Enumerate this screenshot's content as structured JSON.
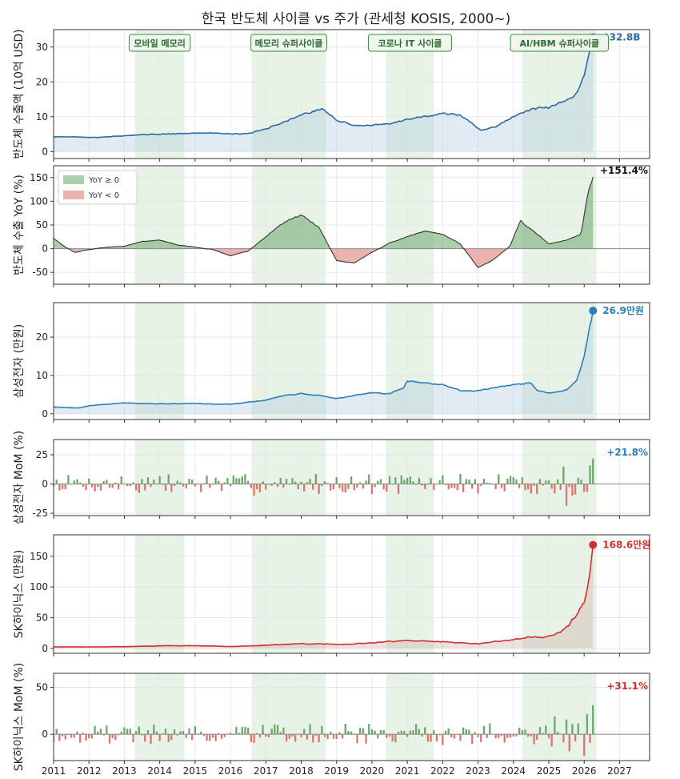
{
  "title": "한국 반도체 사이클 vs 주가 (관세청 KOSIS, 2000~)",
  "colors": {
    "exports": "#2e6b9e",
    "samsung": "#2c7fb8",
    "hynix": "#d32f2f",
    "pos": "#6aa86a",
    "neg": "#d9756d",
    "era": "#e8f3e8",
    "eraBorder": "#3d8b3d"
  },
  "chart_data": [
    {
      "type": "area",
      "ylabel": "반도체 수출액 (10억 USD)",
      "ylim": [
        -2,
        35
      ],
      "yticks": [
        0,
        10,
        20,
        30
      ],
      "end_label": "$32.8B",
      "anchors": [
        [
          2011.0,
          4.2
        ],
        [
          2011.5,
          4.3
        ],
        [
          2012.0,
          4.0
        ],
        [
          2012.5,
          4.2
        ],
        [
          2013.0,
          4.6
        ],
        [
          2013.5,
          4.9
        ],
        [
          2014.0,
          5.0
        ],
        [
          2014.5,
          5.1
        ],
        [
          2015.0,
          5.3
        ],
        [
          2015.5,
          5.4
        ],
        [
          2016.0,
          5.1
        ],
        [
          2016.5,
          5.2
        ],
        [
          2017.0,
          6.5
        ],
        [
          2017.5,
          8.5
        ],
        [
          2018.0,
          10.5
        ],
        [
          2018.6,
          12.3
        ],
        [
          2019.0,
          9.0
        ],
        [
          2019.5,
          7.5
        ],
        [
          2020.0,
          7.6
        ],
        [
          2020.5,
          7.9
        ],
        [
          2021.0,
          9.2
        ],
        [
          2021.5,
          10.2
        ],
        [
          2022.0,
          11.0
        ],
        [
          2022.5,
          10.5
        ],
        [
          2022.9,
          7.5
        ],
        [
          2023.1,
          6.0
        ],
        [
          2023.5,
          7.2
        ],
        [
          2024.0,
          10.0
        ],
        [
          2024.5,
          12.0
        ],
        [
          2025.0,
          12.7
        ],
        [
          2025.5,
          14.5
        ],
        [
          2025.8,
          17.0
        ],
        [
          2026.0,
          22.0
        ],
        [
          2026.25,
          32.8
        ]
      ],
      "noise": 0.55
    },
    {
      "type": "area",
      "ylabel": "반도체 수출 YoY (%)",
      "ylim": [
        -75,
        175
      ],
      "yticks": [
        -50,
        0,
        50,
        100,
        150
      ],
      "end_label": "+151.4%",
      "legend": [
        "YoY ≥ 0",
        "YoY < 0"
      ],
      "anchors": [
        [
          2011.0,
          22
        ],
        [
          2011.3,
          5
        ],
        [
          2011.6,
          -8
        ],
        [
          2012.0,
          -2
        ],
        [
          2012.5,
          3
        ],
        [
          2013.0,
          5
        ],
        [
          2013.5,
          15
        ],
        [
          2014.0,
          18
        ],
        [
          2014.5,
          8
        ],
        [
          2015.0,
          3
        ],
        [
          2015.5,
          -2
        ],
        [
          2016.0,
          -15
        ],
        [
          2016.5,
          -5
        ],
        [
          2017.0,
          25
        ],
        [
          2017.5,
          55
        ],
        [
          2018.0,
          72
        ],
        [
          2018.5,
          45
        ],
        [
          2019.0,
          -25
        ],
        [
          2019.5,
          -30
        ],
        [
          2020.0,
          -8
        ],
        [
          2020.5,
          12
        ],
        [
          2021.0,
          25
        ],
        [
          2021.5,
          38
        ],
        [
          2022.0,
          30
        ],
        [
          2022.5,
          10
        ],
        [
          2023.0,
          -40
        ],
        [
          2023.4,
          -25
        ],
        [
          2023.9,
          5
        ],
        [
          2024.2,
          58
        ],
        [
          2024.6,
          35
        ],
        [
          2025.0,
          10
        ],
        [
          2025.5,
          18
        ],
        [
          2025.9,
          30
        ],
        [
          2026.1,
          110
        ],
        [
          2026.25,
          151.4
        ]
      ],
      "noise": 4
    },
    {
      "type": "area",
      "ylabel": "삼성전자 (만원)",
      "ylim": [
        -1.5,
        29
      ],
      "yticks": [
        0,
        10,
        20
      ],
      "end_label": "26.9만원",
      "anchors": [
        [
          2011.0,
          1.8
        ],
        [
          2011.7,
          1.5
        ],
        [
          2012.0,
          2.1
        ],
        [
          2012.5,
          2.5
        ],
        [
          2013.0,
          2.9
        ],
        [
          2013.5,
          2.7
        ],
        [
          2014.0,
          2.6
        ],
        [
          2014.5,
          2.6
        ],
        [
          2015.0,
          2.7
        ],
        [
          2015.5,
          2.5
        ],
        [
          2016.0,
          2.5
        ],
        [
          2016.5,
          3.0
        ],
        [
          2017.0,
          3.6
        ],
        [
          2017.5,
          4.7
        ],
        [
          2018.0,
          5.2
        ],
        [
          2018.5,
          4.8
        ],
        [
          2019.0,
          4.0
        ],
        [
          2019.5,
          4.8
        ],
        [
          2020.0,
          5.5
        ],
        [
          2020.5,
          5.2
        ],
        [
          2020.9,
          6.8
        ],
        [
          2021.0,
          8.5
        ],
        [
          2021.5,
          8.0
        ],
        [
          2022.0,
          7.6
        ],
        [
          2022.5,
          6.0
        ],
        [
          2023.0,
          6.0
        ],
        [
          2023.5,
          7.0
        ],
        [
          2024.0,
          7.5
        ],
        [
          2024.5,
          8.0
        ],
        [
          2024.7,
          6.0
        ],
        [
          2025.0,
          5.4
        ],
        [
          2025.5,
          6.2
        ],
        [
          2025.8,
          9.0
        ],
        [
          2026.0,
          15.0
        ],
        [
          2026.1,
          20.0
        ],
        [
          2026.25,
          26.9
        ]
      ],
      "noise": 0.22
    },
    {
      "type": "bar",
      "ylabel": "삼성전자 MoM (%)",
      "ylim": [
        -27,
        38
      ],
      "yticks": [
        -25,
        0,
        25
      ],
      "end_label": "+21.8%",
      "start": 2011.0,
      "step": 0.08333,
      "seed": 7,
      "amp": 8,
      "last": 21.8
    },
    {
      "type": "area",
      "ylabel": "SK하이닉스 (만원)",
      "ylim": [
        -8,
        185
      ],
      "yticks": [
        0,
        50,
        100,
        150
      ],
      "end_label": "168.6만원",
      "anchors": [
        [
          2011.0,
          2.5
        ],
        [
          2012.0,
          2.4
        ],
        [
          2013.0,
          2.8
        ],
        [
          2014.0,
          4.2
        ],
        [
          2015.0,
          4.5
        ],
        [
          2016.0,
          3.0
        ],
        [
          2017.0,
          5.0
        ],
        [
          2018.0,
          8.0
        ],
        [
          2018.7,
          7.0
        ],
        [
          2019.0,
          6.0
        ],
        [
          2020.0,
          9.0
        ],
        [
          2021.0,
          13.0
        ],
        [
          2021.5,
          12.0
        ],
        [
          2022.0,
          11.0
        ],
        [
          2022.5,
          9.0
        ],
        [
          2023.0,
          7.5
        ],
        [
          2023.5,
          11.0
        ],
        [
          2024.0,
          14.0
        ],
        [
          2024.5,
          19.0
        ],
        [
          2024.8,
          17.0
        ],
        [
          2025.0,
          20.0
        ],
        [
          2025.3,
          25.0
        ],
        [
          2025.6,
          40.0
        ],
        [
          2025.8,
          55.0
        ],
        [
          2026.0,
          80.0
        ],
        [
          2026.15,
          110.0
        ],
        [
          2026.25,
          168.6
        ]
      ],
      "noise": 0.9
    },
    {
      "type": "bar",
      "ylabel": "SK하이닉스 MoM (%)",
      "ylim": [
        -28,
        65
      ],
      "yticks": [
        0,
        50
      ],
      "end_label": "+31.1%",
      "start": 2011.0,
      "step": 0.08333,
      "seed": 19,
      "amp": 10,
      "last": 31.1
    }
  ],
  "shared_x": {
    "xlim": [
      2011.0,
      2027.85
    ],
    "ticks": [
      "2011",
      "2012",
      "2013",
      "2014",
      "2015",
      "2016",
      "2017",
      "2018",
      "2019",
      "2020",
      "2021",
      "2022",
      "2023",
      "2024",
      "2025",
      "2026",
      "2027"
    ]
  },
  "eras": [
    {
      "label": "모바일 메모리",
      "start": 2013.3,
      "end": 2014.7
    },
    {
      "label": "메모리 슈퍼사이클",
      "start": 2016.6,
      "end": 2018.7
    },
    {
      "label": "코로나 IT 사이클",
      "start": 2020.4,
      "end": 2021.75
    },
    {
      "label": "AI/HBM 슈퍼사이클",
      "start": 2024.25,
      "end": 2026.35
    }
  ]
}
